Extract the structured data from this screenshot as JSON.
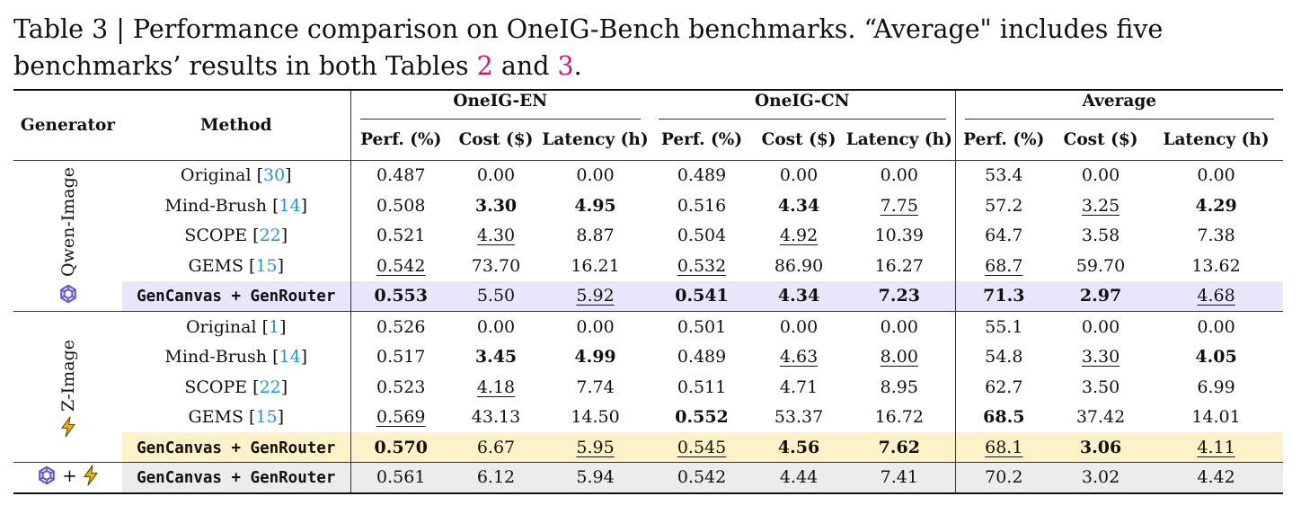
{
  "caption": {
    "text_before": "Table 3 | Performance comparison on OneIG-Bench benchmarks. “Average\" includes five benchmarks’ results in both Tables ",
    "ref1": "2",
    "text_middle": " and ",
    "ref2": "3",
    "text_after": "."
  },
  "header": {
    "generator": "Generator",
    "method": "Method",
    "groups": [
      "OneIG-EN",
      "OneIG-CN",
      "Average"
    ],
    "subcols": [
      "Perf. (%)",
      "Cost ($)",
      "Latency (h)"
    ]
  },
  "icons": {
    "qwen": "qwen-logo-icon",
    "zimage": "lightning-bolt-icon",
    "qwen_color": "#6b57d6",
    "zimage_color": "#f2b300"
  },
  "colors": {
    "highlight_qwen": "#e7e6fb",
    "highlight_zimage": "#fdf1c7",
    "highlight_combined": "#ececec",
    "citation": "#1a9ad6",
    "table_ref": "#d4147e"
  },
  "groups": [
    {
      "generator": "Qwen-Image",
      "rows": [
        {
          "method": "Original",
          "cite": "30",
          "vals": [
            "0.487",
            "0.00",
            "0.00",
            "0.489",
            "0.00",
            "0.00",
            "53.4",
            "0.00",
            "0.00"
          ],
          "bold": [],
          "under": []
        },
        {
          "method": "Mind-Brush",
          "cite": "14",
          "vals": [
            "0.508",
            "3.30",
            "4.95",
            "0.516",
            "4.34",
            "7.75",
            "57.2",
            "3.25",
            "4.29"
          ],
          "bold": [
            1,
            2,
            4,
            8
          ],
          "under": [
            5,
            7
          ]
        },
        {
          "method": "SCOPE",
          "cite": "22",
          "vals": [
            "0.521",
            "4.30",
            "8.87",
            "0.504",
            "4.92",
            "10.39",
            "64.7",
            "3.58",
            "7.38"
          ],
          "bold": [],
          "under": [
            1,
            4
          ]
        },
        {
          "method": "GEMS",
          "cite": "15",
          "vals": [
            "0.542",
            "73.70",
            "16.21",
            "0.532",
            "86.90",
            "16.27",
            "68.7",
            "59.70",
            "13.62"
          ],
          "bold": [],
          "under": [
            0,
            3,
            6
          ]
        },
        {
          "method": "GenCanvas + GenRouter",
          "cite": "",
          "vals": [
            "0.553",
            "5.50",
            "5.92",
            "0.541",
            "4.34",
            "7.23",
            "71.3",
            "2.97",
            "4.68"
          ],
          "bold": [
            0,
            3,
            4,
            5,
            6,
            7
          ],
          "under": [
            2,
            8
          ],
          "ours": true
        }
      ]
    },
    {
      "generator": "Z-Image",
      "rows": [
        {
          "method": "Original",
          "cite": "1",
          "vals": [
            "0.526",
            "0.00",
            "0.00",
            "0.501",
            "0.00",
            "0.00",
            "55.1",
            "0.00",
            "0.00"
          ],
          "bold": [],
          "under": []
        },
        {
          "method": "Mind-Brush",
          "cite": "14",
          "vals": [
            "0.517",
            "3.45",
            "4.99",
            "0.489",
            "4.63",
            "8.00",
            "54.8",
            "3.30",
            "4.05"
          ],
          "bold": [
            1,
            2,
            8
          ],
          "under": [
            4,
            5,
            7
          ]
        },
        {
          "method": "SCOPE",
          "cite": "22",
          "vals": [
            "0.523",
            "4.18",
            "7.74",
            "0.511",
            "4.71",
            "8.95",
            "62.7",
            "3.50",
            "6.99"
          ],
          "bold": [],
          "under": [
            1
          ]
        },
        {
          "method": "GEMS",
          "cite": "15",
          "vals": [
            "0.569",
            "43.13",
            "14.50",
            "0.552",
            "53.37",
            "16.72",
            "68.5",
            "37.42",
            "14.01"
          ],
          "bold": [
            3,
            6
          ],
          "under": [
            0
          ]
        },
        {
          "method": "GenCanvas + GenRouter",
          "cite": "",
          "vals": [
            "0.570",
            "6.67",
            "5.95",
            "0.545",
            "4.56",
            "7.62",
            "68.1",
            "3.06",
            "4.11"
          ],
          "bold": [
            0,
            4,
            5,
            7
          ],
          "under": [
            2,
            3,
            6,
            8
          ],
          "ours": true
        }
      ]
    }
  ],
  "combined": {
    "plus": "+",
    "method": "GenCanvas + GenRouter",
    "vals": [
      "0.561",
      "6.12",
      "5.94",
      "0.542",
      "4.44",
      "7.41",
      "70.2",
      "3.02",
      "4.42"
    ]
  }
}
